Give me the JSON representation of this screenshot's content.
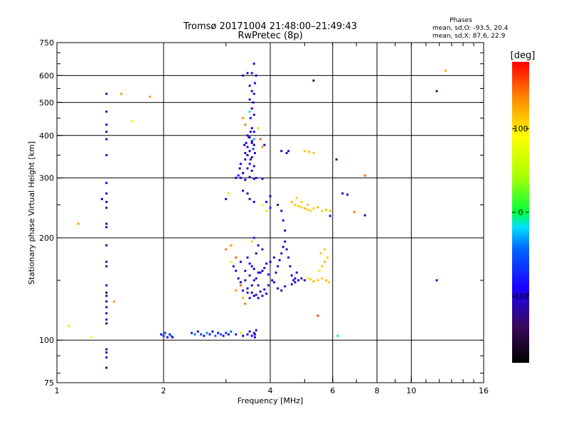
{
  "chart_data": {
    "type": "scatter",
    "title": "Tromsø 20171004 21:48:00–21:49:43",
    "subtitle": "RwPretec (8p)",
    "phases": {
      "heading": "Phases",
      "line_o": "mean, sd,O: -93.5, 20.4",
      "line_x": "mean, sd,X:  87.6, 22.9"
    },
    "xlabel": "Frequency [MHz]",
    "ylabel": "Stationary phase Virtual Height [km]",
    "x_scale": "log",
    "y_scale": "log",
    "xlim": [
      1,
      16
    ],
    "ylim": [
      75,
      750
    ],
    "x_ticks": [
      {
        "v": 1,
        "label": "1"
      },
      {
        "v": 2,
        "label": "2"
      },
      {
        "v": 4,
        "label": "4"
      },
      {
        "v": 6,
        "label": "6"
      },
      {
        "v": 8,
        "label": "8"
      },
      {
        "v": 10,
        "label": "10"
      },
      {
        "v": 16,
        "label": "16"
      }
    ],
    "x_grid": [
      2,
      4,
      6,
      8,
      10
    ],
    "y_ticks": [
      {
        "v": 75,
        "label": "75"
      },
      {
        "v": 100,
        "label": "100"
      },
      {
        "v": 200,
        "label": "200"
      },
      {
        "v": 300,
        "label": "300"
      },
      {
        "v": 400,
        "label": "400"
      },
      {
        "v": 500,
        "label": "500"
      },
      {
        "v": 600,
        "label": "600"
      },
      {
        "v": 750,
        "label": "750"
      }
    ],
    "y_grid": [
      100,
      200,
      300,
      400,
      500,
      600
    ],
    "grid": true,
    "colorbar": {
      "label": "[deg]",
      "range": [
        -180,
        180
      ],
      "ticks": [
        {
          "v": 100,
          "label": "100"
        },
        {
          "v": 0,
          "label": "0"
        },
        {
          "v": -100,
          "label": "-100"
        }
      ]
    },
    "points": [
      [
        1.38,
        530,
        -110
      ],
      [
        1.38,
        470,
        -105
      ],
      [
        1.38,
        430,
        -95
      ],
      [
        1.38,
        410,
        -120
      ],
      [
        1.38,
        390,
        -110
      ],
      [
        1.38,
        350,
        -100
      ],
      [
        1.38,
        290,
        -95
      ],
      [
        1.38,
        270,
        -110
      ],
      [
        1.38,
        255,
        -100
      ],
      [
        1.38,
        245,
        -130
      ],
      [
        1.38,
        220,
        -120
      ],
      [
        1.38,
        215,
        -110
      ],
      [
        1.38,
        190,
        -105
      ],
      [
        1.38,
        170,
        -115
      ],
      [
        1.38,
        165,
        -125
      ],
      [
        1.38,
        145,
        -100
      ],
      [
        1.38,
        138,
        -140
      ],
      [
        1.38,
        135,
        -120
      ],
      [
        1.38,
        130,
        -130
      ],
      [
        1.38,
        125,
        -110
      ],
      [
        1.38,
        120,
        -120
      ],
      [
        1.38,
        115,
        -100
      ],
      [
        1.38,
        112,
        -130
      ],
      [
        1.38,
        94,
        -120
      ],
      [
        1.38,
        92,
        -110
      ],
      [
        1.38,
        89,
        -115
      ],
      [
        1.38,
        83,
        -140
      ],
      [
        1.34,
        260,
        -100
      ],
      [
        1.52,
        530,
        130
      ],
      [
        1.63,
        440,
        80
      ],
      [
        1.83,
        520,
        130
      ],
      [
        1.15,
        220,
        130
      ],
      [
        1.25,
        102,
        90
      ],
      [
        1.08,
        110,
        60
      ],
      [
        1.45,
        130,
        130
      ],
      [
        1.97,
        104,
        -100
      ],
      [
        2.0,
        103,
        -80
      ],
      [
        2.02,
        105,
        -60
      ],
      [
        2.05,
        102,
        -90
      ],
      [
        2.08,
        104,
        -70
      ],
      [
        2.1,
        103,
        -40
      ],
      [
        2.12,
        102,
        -100
      ],
      [
        2.4,
        105,
        -80
      ],
      [
        2.45,
        104,
        -40
      ],
      [
        2.5,
        106,
        -100
      ],
      [
        2.55,
        104,
        -60
      ],
      [
        2.6,
        103,
        -90
      ],
      [
        2.65,
        105,
        -40
      ],
      [
        2.7,
        104,
        -80
      ],
      [
        2.75,
        106,
        -100
      ],
      [
        2.8,
        103,
        -50
      ],
      [
        2.85,
        105,
        -90
      ],
      [
        2.9,
        104,
        -60
      ],
      [
        2.95,
        103,
        -110
      ],
      [
        3.0,
        105,
        -70
      ],
      [
        3.05,
        104,
        -90
      ],
      [
        3.1,
        106,
        -50
      ],
      [
        3.2,
        104,
        -80
      ],
      [
        3.3,
        105,
        60
      ],
      [
        3.35,
        103,
        -100
      ],
      [
        3.45,
        104,
        -90
      ],
      [
        3.5,
        106,
        -110
      ],
      [
        3.55,
        103,
        -100
      ],
      [
        3.6,
        105,
        -120
      ],
      [
        3.62,
        104,
        -100
      ],
      [
        3.65,
        107,
        -110
      ],
      [
        3.62,
        102,
        -90
      ],
      [
        3.6,
        650,
        -110
      ],
      [
        3.55,
        610,
        -100
      ],
      [
        3.45,
        610,
        -95
      ],
      [
        3.35,
        600,
        -110
      ],
      [
        3.65,
        600,
        -105
      ],
      [
        3.62,
        570,
        -95
      ],
      [
        3.5,
        560,
        -100
      ],
      [
        3.55,
        540,
        -110
      ],
      [
        3.6,
        530,
        -100
      ],
      [
        3.5,
        510,
        -95
      ],
      [
        3.58,
        500,
        -110
      ],
      [
        3.55,
        480,
        -100
      ],
      [
        3.6,
        460,
        -105
      ],
      [
        3.52,
        450,
        -95
      ],
      [
        3.35,
        450,
        130
      ],
      [
        3.4,
        430,
        140
      ],
      [
        3.5,
        470,
        -20
      ],
      [
        3.7,
        420,
        110
      ],
      [
        3.45,
        400,
        -100
      ],
      [
        3.55,
        420,
        -110
      ],
      [
        3.6,
        410,
        -100
      ],
      [
        3.5,
        395,
        -95
      ],
      [
        3.55,
        385,
        -105
      ],
      [
        3.6,
        375,
        -110
      ],
      [
        3.45,
        370,
        -100
      ],
      [
        3.5,
        360,
        -95
      ],
      [
        3.62,
        355,
        -105
      ],
      [
        3.55,
        345,
        -100
      ],
      [
        3.4,
        340,
        -110
      ],
      [
        3.5,
        330,
        -100
      ],
      [
        3.6,
        325,
        -95
      ],
      [
        3.45,
        320,
        -105
      ],
      [
        3.55,
        315,
        -110
      ],
      [
        3.35,
        310,
        -100
      ],
      [
        3.25,
        305,
        -95
      ],
      [
        3.65,
        300,
        -105
      ],
      [
        3.8,
        298,
        -100
      ],
      [
        3.6,
        298,
        -110
      ],
      [
        3.5,
        302,
        -95
      ],
      [
        3.4,
        296,
        -100
      ],
      [
        3.3,
        300,
        -110
      ],
      [
        3.2,
        300,
        -105
      ],
      [
        3.3,
        330,
        -90
      ],
      [
        3.4,
        355,
        -110
      ],
      [
        3.42,
        380,
        -95
      ],
      [
        3.48,
        395,
        -120
      ],
      [
        3.38,
        375,
        -100
      ],
      [
        3.28,
        320,
        -100
      ],
      [
        3.52,
        340,
        -140
      ],
      [
        3.45,
        350,
        -120
      ],
      [
        3.58,
        365,
        -60
      ],
      [
        3.6,
        390,
        -30
      ],
      [
        3.55,
        380,
        -90
      ],
      [
        3.52,
        410,
        -100
      ],
      [
        3.75,
        390,
        150
      ],
      [
        3.8,
        370,
        130
      ],
      [
        3.85,
        375,
        -100
      ],
      [
        4.3,
        360,
        -100
      ],
      [
        4.45,
        355,
        -110
      ],
      [
        4.5,
        360,
        -90
      ],
      [
        5.0,
        360,
        110
      ],
      [
        5.15,
        358,
        120
      ],
      [
        5.3,
        355,
        110
      ],
      [
        4.0,
        265,
        -100
      ],
      [
        3.9,
        255,
        -90
      ],
      [
        4.2,
        250,
        -110
      ],
      [
        4.3,
        240,
        -100
      ],
      [
        4.35,
        225,
        -80
      ],
      [
        4.4,
        210,
        -100
      ],
      [
        4.0,
        245,
        -70
      ],
      [
        3.8,
        250,
        80
      ],
      [
        3.9,
        240,
        70
      ],
      [
        4.6,
        255,
        120
      ],
      [
        4.7,
        250,
        110
      ],
      [
        4.8,
        248,
        115
      ],
      [
        4.9,
        246,
        110
      ],
      [
        5.0,
        244,
        120
      ],
      [
        5.1,
        242,
        110
      ],
      [
        5.2,
        240,
        115
      ],
      [
        5.3,
        244,
        110
      ],
      [
        5.45,
        246,
        120
      ],
      [
        5.6,
        240,
        110
      ],
      [
        5.75,
        242,
        115
      ],
      [
        5.9,
        240,
        120
      ],
      [
        4.9,
        255,
        110
      ],
      [
        5.1,
        250,
        115
      ],
      [
        4.75,
        262,
        110
      ],
      [
        3.35,
        275,
        -100
      ],
      [
        3.45,
        270,
        -110
      ],
      [
        3.05,
        270,
        100
      ],
      [
        3.0,
        260,
        -100
      ],
      [
        3.5,
        260,
        -120
      ],
      [
        3.6,
        255,
        -90
      ],
      [
        6.15,
        340,
        -130
      ],
      [
        6.4,
        270,
        -100
      ],
      [
        6.6,
        268,
        -110
      ],
      [
        6.9,
        238,
        140
      ],
      [
        7.4,
        233,
        -110
      ],
      [
        7.4,
        305,
        150
      ],
      [
        5.9,
        232,
        -100
      ],
      [
        11.8,
        540,
        -130
      ],
      [
        12.5,
        620,
        120
      ],
      [
        11.8,
        150,
        -110
      ],
      [
        5.3,
        580,
        -130
      ],
      [
        5.45,
        118,
        160
      ],
      [
        6.2,
        103,
        -20
      ],
      [
        3.6,
        200,
        -80
      ],
      [
        3.55,
        195,
        110
      ],
      [
        3.7,
        190,
        -90
      ],
      [
        3.8,
        185,
        -100
      ],
      [
        3.65,
        180,
        -110
      ],
      [
        3.45,
        175,
        -95
      ],
      [
        3.3,
        170,
        -105
      ],
      [
        3.55,
        165,
        -100
      ],
      [
        3.4,
        160,
        -110
      ],
      [
        3.5,
        155,
        -95
      ],
      [
        3.6,
        150,
        -105
      ],
      [
        3.7,
        145,
        -100
      ],
      [
        3.45,
        142,
        -110
      ],
      [
        3.35,
        140,
        -95
      ],
      [
        3.55,
        138,
        -105
      ],
      [
        3.65,
        136,
        -100
      ],
      [
        3.75,
        139,
        -110
      ],
      [
        3.85,
        141,
        -95
      ],
      [
        3.95,
        145,
        -105
      ],
      [
        4.05,
        150,
        -100
      ],
      [
        4.15,
        158,
        -110
      ],
      [
        4.2,
        165,
        -95
      ],
      [
        4.25,
        172,
        -105
      ],
      [
        4.3,
        180,
        -100
      ],
      [
        4.35,
        188,
        -110
      ],
      [
        4.4,
        195,
        -95
      ],
      [
        4.45,
        185,
        -105
      ],
      [
        4.5,
        175,
        -100
      ],
      [
        4.55,
        165,
        -110
      ],
      [
        4.6,
        155,
        -95
      ],
      [
        4.65,
        150,
        -105
      ],
      [
        4.7,
        148,
        -100
      ],
      [
        4.8,
        150,
        -110
      ],
      [
        4.9,
        152,
        -95
      ],
      [
        5.0,
        150,
        -105
      ],
      [
        5.1,
        152,
        100
      ],
      [
        5.2,
        151,
        110
      ],
      [
        5.3,
        149,
        120
      ],
      [
        5.45,
        150,
        115
      ],
      [
        5.6,
        152,
        110
      ],
      [
        5.75,
        150,
        120
      ],
      [
        5.85,
        148,
        110
      ],
      [
        5.5,
        160,
        100
      ],
      [
        5.6,
        165,
        110
      ],
      [
        5.7,
        170,
        120
      ],
      [
        5.8,
        175,
        110
      ],
      [
        5.55,
        180,
        115
      ],
      [
        5.7,
        185,
        110
      ],
      [
        4.0,
        170,
        -100
      ],
      [
        4.1,
        175,
        -110
      ],
      [
        3.9,
        168,
        -95
      ],
      [
        3.8,
        160,
        -105
      ],
      [
        3.7,
        158,
        -100
      ],
      [
        3.6,
        162,
        -110
      ],
      [
        3.5,
        168,
        -95
      ],
      [
        3.4,
        150,
        -105
      ],
      [
        3.3,
        148,
        -100
      ],
      [
        3.25,
        152,
        -110
      ],
      [
        3.2,
        160,
        -95
      ],
      [
        3.15,
        165,
        -105
      ],
      [
        3.1,
        170,
        80
      ],
      [
        3.2,
        175,
        150
      ],
      [
        3.3,
        145,
        150
      ],
      [
        3.2,
        140,
        130
      ],
      [
        3.35,
        133,
        120
      ],
      [
        3.4,
        128,
        140
      ],
      [
        3.6,
        135,
        -110
      ],
      [
        3.7,
        133,
        -100
      ],
      [
        3.8,
        135,
        -95
      ],
      [
        3.9,
        137,
        -105
      ],
      [
        3.5,
        133,
        -100
      ],
      [
        3.45,
        138,
        -110
      ],
      [
        3.55,
        145,
        -95
      ],
      [
        3.65,
        152,
        -105
      ],
      [
        3.75,
        158,
        -100
      ],
      [
        3.85,
        163,
        -110
      ],
      [
        3.95,
        156,
        -95
      ],
      [
        4.1,
        148,
        -105
      ],
      [
        4.2,
        142,
        -100
      ],
      [
        4.3,
        140,
        -110
      ],
      [
        4.4,
        144,
        -95
      ],
      [
        4.6,
        146,
        -105
      ],
      [
        4.7,
        152,
        -100
      ],
      [
        4.75,
        158,
        -110
      ],
      [
        3.0,
        185,
        140
      ],
      [
        3.1,
        190,
        130
      ]
    ]
  }
}
